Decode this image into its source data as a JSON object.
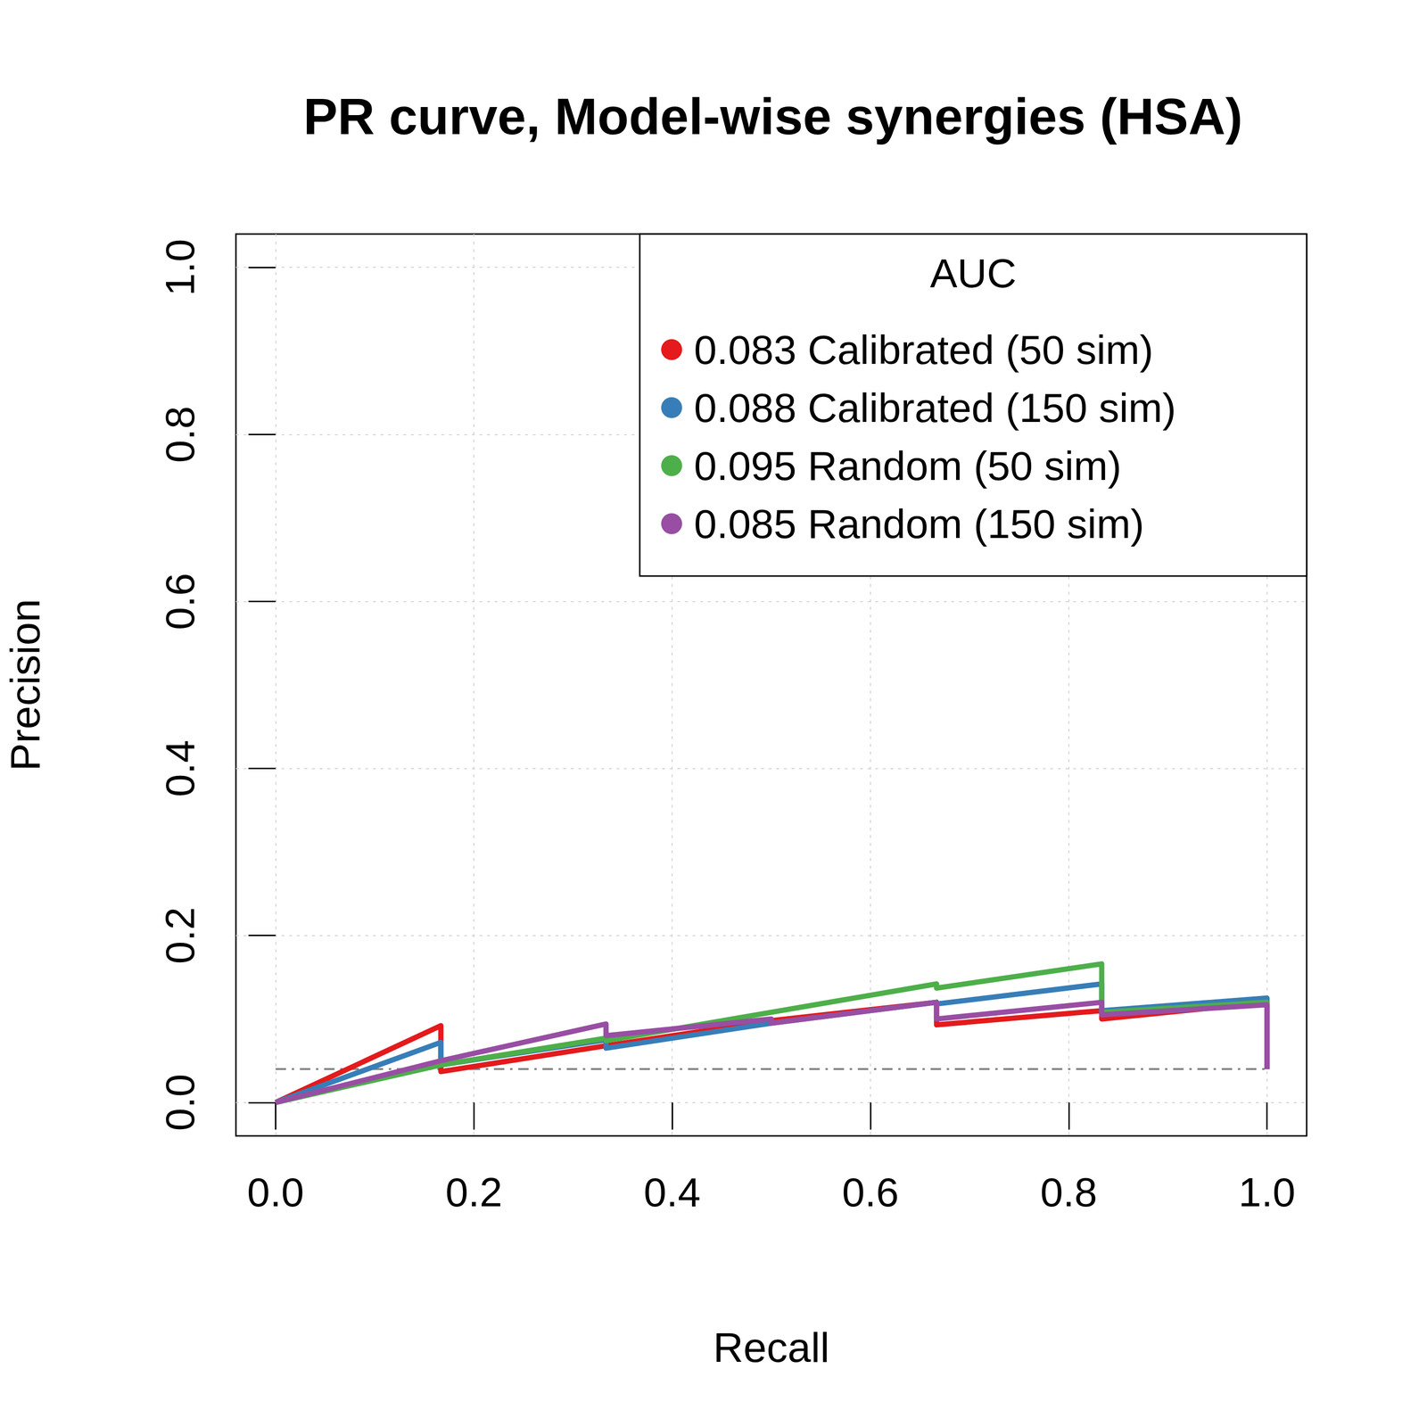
{
  "chart_data": {
    "type": "line",
    "title": "PR curve, Model-wise synergies (HSA)",
    "x_label": "Recall",
    "y_label": "Precision",
    "legend_title": "AUC",
    "legend": "top-right",
    "grid": true,
    "xlim": [
      -0.04,
      1.04
    ],
    "ylim": [
      -0.04,
      1.04
    ],
    "xticks": [
      {
        "value": 0,
        "label": "0.0"
      },
      0.2,
      0.4,
      0.6,
      0.8,
      {
        "value": 1,
        "label": "1.0"
      }
    ],
    "yticks": [
      {
        "value": 0,
        "label": "0.0"
      },
      0.2,
      0.4,
      0.6,
      0.8,
      {
        "value": 1,
        "label": "1.0"
      }
    ],
    "series": [
      {
        "name": "0.083 Calibrated (50 sim)",
        "color": "#E41A1C",
        "line_style": "solid",
        "x": [
          0,
          0.1667,
          0.1667,
          0.3333,
          0.5,
          0.6667,
          0.6667,
          0.8333,
          0.8333,
          1,
          1
        ],
        "values": [
          0,
          0.092,
          0.037,
          0.068,
          0.098,
          0.12,
          0.093,
          0.11,
          0.1,
          0.12,
          0.04
        ]
      },
      {
        "name": "0.088 Calibrated (150 sim)",
        "color": "#377EB8",
        "line_style": "solid",
        "x": [
          0,
          0.1667,
          0.1667,
          0.3333,
          0.3333,
          0.5,
          0.6667,
          0.6667,
          0.8333,
          0.8333,
          1,
          1
        ],
        "values": [
          0,
          0.072,
          0.045,
          0.075,
          0.065,
          0.095,
          0.12,
          0.118,
          0.142,
          0.11,
          0.125,
          0.04
        ]
      },
      {
        "name": "0.095 Random (50 sim)",
        "color": "#4DAF4A",
        "line_style": "solid",
        "x": [
          0,
          0.1667,
          0.3333,
          0.3333,
          0.5,
          0.6667,
          0.6667,
          0.8333,
          0.8333,
          1,
          1
        ],
        "values": [
          0,
          0.045,
          0.077,
          0.074,
          0.108,
          0.142,
          0.137,
          0.166,
          0.108,
          0.12,
          0.04
        ]
      },
      {
        "name": "0.085 Random (150 sim)",
        "color": "#984EA3",
        "line_style": "solid",
        "x": [
          0,
          0.1667,
          0.3333,
          0.3333,
          0.5,
          0.5,
          0.6667,
          0.6667,
          0.8333,
          0.8333,
          1,
          1
        ],
        "values": [
          0,
          0.05,
          0.094,
          0.08,
          0.1,
          0.095,
          0.12,
          0.1,
          0.12,
          0.105,
          0.117,
          0.04
        ]
      }
    ],
    "reference_line": {
      "x": [
        0,
        1
      ],
      "values": [
        0.04,
        0.04
      ],
      "color": "#808080",
      "line_style": "dashdot"
    }
  }
}
